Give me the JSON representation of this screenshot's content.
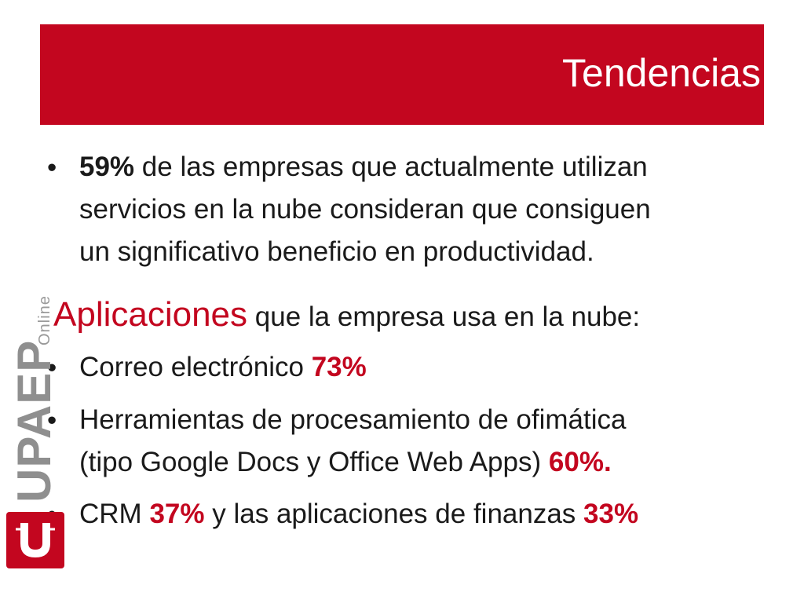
{
  "title": "Tendencias",
  "intro": {
    "highlight": "59%",
    "text": "de las empresas que actualmente utilizan",
    "line2": "servicios en la nube consideran que consiguen",
    "line3": "un significativo beneficio en productividad."
  },
  "apps_heading": {
    "big": "Aplicaciones",
    "rest": "que la empresa usa en la nube:"
  },
  "items": [
    {
      "text": "Correo electrónico",
      "value": "73%"
    },
    {
      "line1": "Herramientas de procesamiento de ofimática",
      "line2": "(tipo Google Docs y Office Web Apps)",
      "value": "60%."
    },
    {
      "text1": "CRM",
      "value1": "37%",
      "text2": "y las aplicaciones de finanzas",
      "value2": "33%"
    }
  ],
  "logo": {
    "brand": "UPAEP",
    "subtitle": "Online"
  },
  "colors": {
    "accent": "#c3061f",
    "text": "#1a1a1a",
    "logo_gray": "#8f8f8f"
  }
}
